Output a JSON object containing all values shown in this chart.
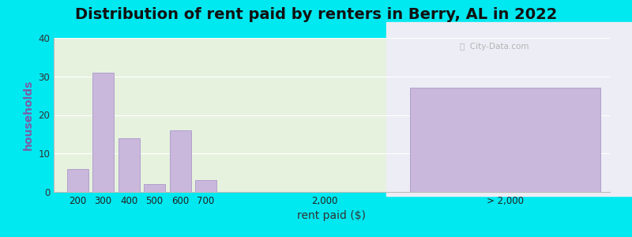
{
  "title": "Distribution of rent paid by renters in Berry, AL in 2022",
  "xlabel": "rent paid ($)",
  "ylabel": "households",
  "bar_color": "#c9b8dc",
  "bar_edgecolor": "#b0a0cc",
  "background_color": "#00e8f0",
  "plot_bg_left": "#e6f2de",
  "plot_bg_right": "#ededf5",
  "ylim": [
    0,
    40
  ],
  "yticks": [
    0,
    10,
    20,
    30,
    40
  ],
  "reg_labels": [
    "200",
    "300",
    "400",
    "500",
    "600",
    "700"
  ],
  "reg_values": [
    6,
    31,
    14,
    2,
    16,
    3
  ],
  "special_label": "> 2,000",
  "special_value": 27,
  "mid_label": "2,000",
  "title_fontsize": 14,
  "axis_label_fontsize": 10,
  "tick_fontsize": 8.5
}
